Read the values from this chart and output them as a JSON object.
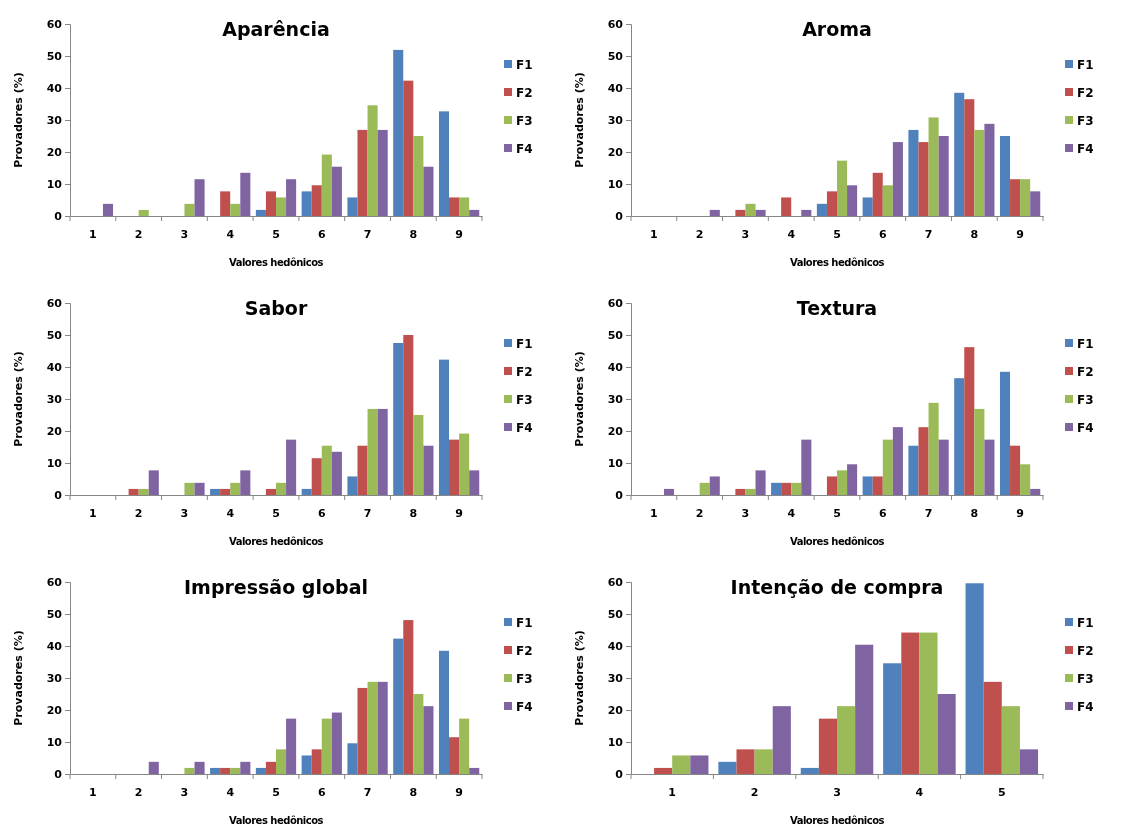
{
  "chart_data": [
    {
      "type": "bar",
      "title": "Aparência",
      "xlabel": "Valores hedônicos",
      "ylabel": "Provadores (%)",
      "categories": [
        "1",
        "2",
        "3",
        "4",
        "5",
        "6",
        "7",
        "8",
        "9"
      ],
      "ylim": [
        0,
        60
      ],
      "yticks": [
        0,
        10,
        20,
        30,
        40,
        50,
        60
      ],
      "legend": "right",
      "series": [
        {
          "name": "F1",
          "color": "#4f81bd",
          "values": [
            0,
            0,
            0,
            0,
            1.9,
            7.7,
            5.8,
            51.9,
            32.7
          ]
        },
        {
          "name": "F2",
          "color": "#c0504d",
          "values": [
            0,
            0,
            0,
            7.7,
            7.7,
            9.6,
            26.9,
            42.3,
            5.8
          ]
        },
        {
          "name": "F3",
          "color": "#9bbb59",
          "values": [
            0,
            1.9,
            3.8,
            3.8,
            5.8,
            19.2,
            34.6,
            25,
            5.8
          ]
        },
        {
          "name": "F4",
          "color": "#8064a2",
          "values": [
            3.8,
            0,
            11.5,
            13.5,
            11.5,
            15.4,
            26.9,
            15.4,
            1.9
          ]
        }
      ]
    },
    {
      "type": "bar",
      "title": "Aroma",
      "xlabel": "Valores hedônicos",
      "ylabel": "Provadores (%)",
      "categories": [
        "1",
        "2",
        "3",
        "4",
        "5",
        "6",
        "7",
        "8",
        "9"
      ],
      "ylim": [
        0,
        60
      ],
      "yticks": [
        0,
        10,
        20,
        30,
        40,
        50,
        60
      ],
      "legend": "right",
      "series": [
        {
          "name": "F1",
          "color": "#4f81bd",
          "values": [
            0,
            0,
            0,
            0,
            3.8,
            5.8,
            26.9,
            38.5,
            25
          ]
        },
        {
          "name": "F2",
          "color": "#c0504d",
          "values": [
            0,
            0,
            1.9,
            5.8,
            7.7,
            13.5,
            23.1,
            36.5,
            11.5
          ]
        },
        {
          "name": "F3",
          "color": "#9bbb59",
          "values": [
            0,
            0,
            3.8,
            0,
            17.3,
            9.6,
            30.8,
            26.9,
            11.5
          ]
        },
        {
          "name": "F4",
          "color": "#8064a2",
          "values": [
            0,
            1.9,
            1.9,
            1.9,
            9.6,
            23.1,
            25,
            28.8,
            7.7
          ]
        }
      ]
    },
    {
      "type": "bar",
      "title": "Sabor",
      "xlabel": "Valores hedônicos",
      "ylabel": "Provadores (%)",
      "categories": [
        "1",
        "2",
        "3",
        "4",
        "5",
        "6",
        "7",
        "8",
        "9"
      ],
      "ylim": [
        0,
        60
      ],
      "yticks": [
        0,
        10,
        20,
        30,
        40,
        50,
        60
      ],
      "legend": "right",
      "series": [
        {
          "name": "F1",
          "color": "#4f81bd",
          "values": [
            0,
            0,
            0,
            1.9,
            0,
            1.9,
            5.8,
            47.5,
            42.3
          ]
        },
        {
          "name": "F2",
          "color": "#c0504d",
          "values": [
            0,
            1.9,
            0,
            1.9,
            1.9,
            11.5,
            15.4,
            50,
            17.3
          ]
        },
        {
          "name": "F3",
          "color": "#9bbb59",
          "values": [
            0,
            1.9,
            3.8,
            3.8,
            3.8,
            15.4,
            26.9,
            25,
            19.2
          ]
        },
        {
          "name": "F4",
          "color": "#8064a2",
          "values": [
            0,
            7.7,
            3.8,
            7.7,
            17.3,
            13.5,
            26.9,
            15.4,
            7.7
          ]
        }
      ]
    },
    {
      "type": "bar",
      "title": "Textura",
      "xlabel": "Valores hedônicos",
      "ylabel": "Provadores (%)",
      "categories": [
        "1",
        "2",
        "3",
        "4",
        "5",
        "6",
        "7",
        "8",
        "9"
      ],
      "ylim": [
        0,
        60
      ],
      "yticks": [
        0,
        10,
        20,
        30,
        40,
        50,
        60
      ],
      "legend": "right",
      "series": [
        {
          "name": "F1",
          "color": "#4f81bd",
          "values": [
            0,
            0,
            0,
            3.8,
            0,
            5.8,
            15.4,
            36.5,
            38.5
          ]
        },
        {
          "name": "F2",
          "color": "#c0504d",
          "values": [
            0,
            0,
            1.9,
            3.8,
            5.8,
            5.8,
            21.2,
            46.2,
            15.4
          ]
        },
        {
          "name": "F3",
          "color": "#9bbb59",
          "values": [
            0,
            3.8,
            1.9,
            3.8,
            7.7,
            17.3,
            28.8,
            26.9,
            9.6
          ]
        },
        {
          "name": "F4",
          "color": "#8064a2",
          "values": [
            1.9,
            5.8,
            7.7,
            17.3,
            9.6,
            21.2,
            17.3,
            17.3,
            1.9
          ]
        }
      ]
    },
    {
      "type": "bar",
      "title": "Impressão global",
      "xlabel": "Valores hedônicos",
      "ylabel": "Provadores (%)",
      "categories": [
        "1",
        "2",
        "3",
        "4",
        "5",
        "6",
        "7",
        "8",
        "9"
      ],
      "ylim": [
        0,
        60
      ],
      "yticks": [
        0,
        10,
        20,
        30,
        40,
        50,
        60
      ],
      "legend": "right",
      "series": [
        {
          "name": "F1",
          "color": "#4f81bd",
          "values": [
            0,
            0,
            0,
            1.9,
            1.9,
            5.8,
            9.6,
            42.3,
            38.5
          ]
        },
        {
          "name": "F2",
          "color": "#c0504d",
          "values": [
            0,
            0,
            0,
            1.9,
            3.8,
            7.7,
            26.9,
            48.1,
            11.5
          ]
        },
        {
          "name": "F3",
          "color": "#9bbb59",
          "values": [
            0,
            0,
            1.9,
            1.9,
            7.7,
            17.3,
            28.8,
            25,
            17.3
          ]
        },
        {
          "name": "F4",
          "color": "#8064a2",
          "values": [
            0,
            3.8,
            3.8,
            3.8,
            17.3,
            19.2,
            28.8,
            21.2,
            1.9
          ]
        }
      ]
    },
    {
      "type": "bar",
      "title": "Intenção de compra",
      "xlabel": "Valores hedônicos",
      "ylabel": "Provadores (%)",
      "categories": [
        "1",
        "2",
        "3",
        "4",
        "5"
      ],
      "ylim": [
        0,
        60
      ],
      "yticks": [
        0,
        10,
        20,
        30,
        40,
        50,
        60
      ],
      "legend": "right",
      "series": [
        {
          "name": "F1",
          "color": "#4f81bd",
          "values": [
            0,
            3.8,
            1.9,
            34.6,
            59.6
          ]
        },
        {
          "name": "F2",
          "color": "#c0504d",
          "values": [
            1.9,
            7.7,
            17.3,
            44.2,
            28.8
          ]
        },
        {
          "name": "F3",
          "color": "#9bbb59",
          "values": [
            5.8,
            7.7,
            21.2,
            44.2,
            21.2
          ]
        },
        {
          "name": "F4",
          "color": "#8064a2",
          "values": [
            5.8,
            21.2,
            40.4,
            25,
            7.7
          ]
        }
      ]
    }
  ]
}
